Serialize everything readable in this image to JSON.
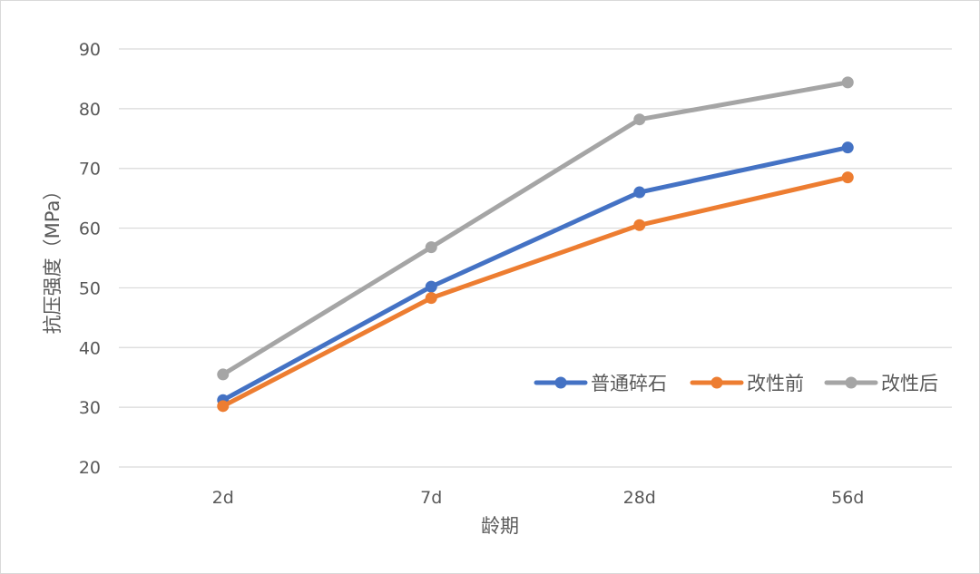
{
  "chart_data": {
    "type": "line",
    "title": "",
    "xlabel": "龄期",
    "ylabel": "抗压强度（MPa）",
    "categories": [
      "2d",
      "7d",
      "28d",
      "56d"
    ],
    "ylim": [
      20,
      90
    ],
    "yticks": [
      20,
      30,
      40,
      50,
      60,
      70,
      80,
      90
    ],
    "grid": "horizontal",
    "legend_position": "inside-right",
    "series": [
      {
        "name": "普通碎石",
        "color": "#4472c4",
        "values": [
          31.2,
          50.2,
          66.0,
          73.5
        ]
      },
      {
        "name": "改性前",
        "color": "#ed7d31",
        "values": [
          30.2,
          48.3,
          60.5,
          68.5
        ]
      },
      {
        "name": "改性后",
        "color": "#a5a5a5",
        "values": [
          35.5,
          56.8,
          78.2,
          84.4
        ]
      }
    ]
  }
}
